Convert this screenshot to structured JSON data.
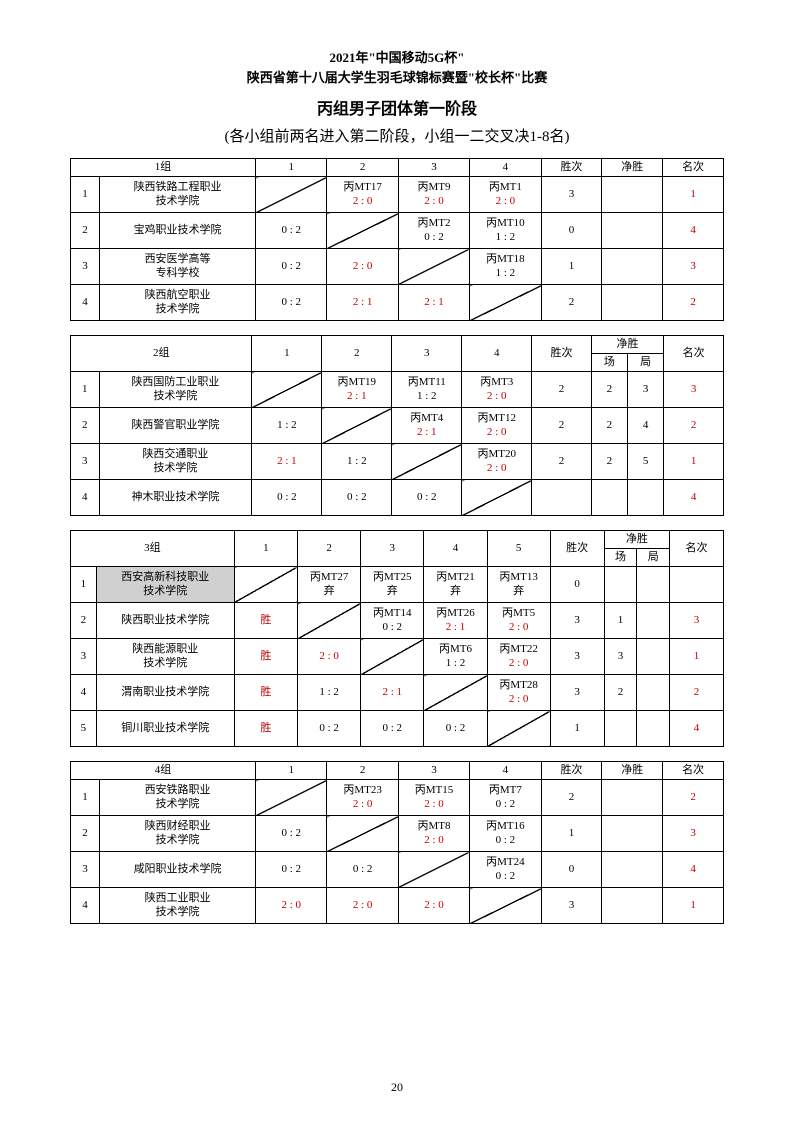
{
  "header": {
    "line1": "2021年\"中国移动5G杯\"",
    "line2": "陕西省第十八届大学生羽毛球锦标赛暨\"校长杯\"比赛"
  },
  "section_title": "丙组男子团体第一阶段",
  "subtitle": "(各小组前两名进入第二阶段，小组一二交叉决1-8名)",
  "labels": {
    "wins": "胜次",
    "net": "净胜",
    "rank": "名次",
    "chang": "场",
    "ju": "局"
  },
  "groups": [
    {
      "name": "1组",
      "match_cols": 4,
      "net_split": false,
      "teams": [
        {
          "name": "陕西铁路工程职业\n技术学院",
          "cells": [
            "DIAG",
            {
              "top": "丙MT17",
              "bot": "2 : 0",
              "bot_red": true
            },
            {
              "top": "丙MT9",
              "bot": "2 : 0",
              "bot_red": true
            },
            {
              "top": "丙MT1",
              "bot": "2 : 0",
              "bot_red": true
            }
          ],
          "wins": "3",
          "net": "",
          "rank": "1",
          "rank_red": true
        },
        {
          "name": "宝鸡职业技术学院",
          "cells": [
            {
              "bot": "0 : 2"
            },
            "DIAG",
            {
              "top": "丙MT2",
              "bot": "0 : 2"
            },
            {
              "top": "丙MT10",
              "bot": "1 : 2"
            }
          ],
          "wins": "0",
          "net": "",
          "rank": "4",
          "rank_red": true
        },
        {
          "name": "西安医学高等\n专科学校",
          "cells": [
            {
              "bot": "0 : 2"
            },
            {
              "bot": "2 : 0",
              "bot_red": true
            },
            "DIAG",
            {
              "top": "丙MT18",
              "bot": "1 : 2"
            }
          ],
          "wins": "1",
          "net": "",
          "rank": "3",
          "rank_red": true
        },
        {
          "name": "陕西航空职业\n技术学院",
          "cells": [
            {
              "bot": "0 : 2"
            },
            {
              "bot": "2 : 1",
              "bot_red": true
            },
            {
              "bot": "2 : 1",
              "bot_red": true
            },
            "DIAG"
          ],
          "wins": "2",
          "net": "",
          "rank": "2",
          "rank_red": true
        }
      ]
    },
    {
      "name": "2组",
      "match_cols": 4,
      "net_split": true,
      "teams": [
        {
          "name": "陕西国防工业职业\n技术学院",
          "cells": [
            "DIAG",
            {
              "top": "丙MT19",
              "bot": "2 : 1",
              "bot_red": true
            },
            {
              "top": "丙MT11",
              "bot": "1 : 2"
            },
            {
              "top": "丙MT3",
              "bot": "2 : 0",
              "bot_red": true
            }
          ],
          "wins": "2",
          "net_c": "2",
          "net_j": "3",
          "rank": "3",
          "rank_red": true
        },
        {
          "name": "陕西警官职业学院",
          "cells": [
            {
              "bot": "1 : 2"
            },
            "DIAG",
            {
              "top": "丙MT4",
              "bot": "2 : 1",
              "bot_red": true
            },
            {
              "top": "丙MT12",
              "bot": "2 : 0",
              "bot_red": true
            }
          ],
          "wins": "2",
          "net_c": "2",
          "net_j": "4",
          "rank": "2",
          "rank_red": true
        },
        {
          "name": "陕西交通职业\n技术学院",
          "cells": [
            {
              "bot": "2 : 1",
              "bot_red": true
            },
            {
              "bot": "1 : 2"
            },
            "DIAG",
            {
              "top": "丙MT20",
              "bot": "2 : 0",
              "bot_red": true
            }
          ],
          "wins": "2",
          "net_c": "2",
          "net_j": "5",
          "rank": "1",
          "rank_red": true
        },
        {
          "name": "神木职业技术学院",
          "cells": [
            {
              "bot": "0 : 2"
            },
            {
              "bot": "0 : 2"
            },
            {
              "bot": "0 : 2"
            },
            "DIAG"
          ],
          "wins": "",
          "net_c": "",
          "net_j": "",
          "rank": "4",
          "rank_red": true
        }
      ]
    },
    {
      "name": "3组",
      "match_cols": 5,
      "net_split": true,
      "teams": [
        {
          "name": "西安高新科技职业\n技术学院",
          "shade": true,
          "cells": [
            "DIAG",
            {
              "top": "丙MT27",
              "bot": "弃"
            },
            {
              "top": "丙MT25",
              "bot": "弃"
            },
            {
              "top": "丙MT21",
              "bot": "弃"
            },
            {
              "top": "丙MT13",
              "bot": "弃"
            }
          ],
          "wins": "0",
          "net_c": "",
          "net_j": "",
          "rank": ""
        },
        {
          "name": "陕西职业技术学院",
          "cells": [
            {
              "bot": "胜",
              "bot_red": true
            },
            "DIAG",
            {
              "top": "丙MT14",
              "bot": "0 : 2"
            },
            {
              "top": "丙MT26",
              "bot": "2 : 1",
              "bot_red": true
            },
            {
              "top": "丙MT5",
              "bot": "2 : 0",
              "bot_red": true
            }
          ],
          "wins": "3",
          "net_c": "1",
          "net_j": "",
          "rank": "3",
          "rank_red": true
        },
        {
          "name": "陕西能源职业\n技术学院",
          "cells": [
            {
              "bot": "胜",
              "bot_red": true
            },
            {
              "bot": "2 : 0",
              "bot_red": true
            },
            "DIAG",
            {
              "top": "丙MT6",
              "bot": "1 : 2"
            },
            {
              "top": "丙MT22",
              "bot": "2 : 0",
              "bot_red": true
            }
          ],
          "wins": "3",
          "net_c": "3",
          "net_j": "",
          "rank": "1",
          "rank_red": true
        },
        {
          "name": "渭南职业技术学院",
          "cells": [
            {
              "bot": "胜",
              "bot_red": true
            },
            {
              "bot": "1 : 2"
            },
            {
              "bot": "2 : 1",
              "bot_red": true
            },
            "DIAG",
            {
              "top": "丙MT28",
              "bot": "2 : 0",
              "bot_red": true
            }
          ],
          "wins": "3",
          "net_c": "2",
          "net_j": "",
          "rank": "2",
          "rank_red": true
        },
        {
          "name": "铜川职业技术学院",
          "cells": [
            {
              "bot": "胜",
              "bot_red": true
            },
            {
              "bot": "0 : 2"
            },
            {
              "bot": "0 : 2"
            },
            {
              "bot": "0 : 2"
            },
            "DIAG"
          ],
          "wins": "1",
          "net_c": "",
          "net_j": "",
          "rank": "4",
          "rank_red": true
        }
      ]
    },
    {
      "name": "4组",
      "match_cols": 4,
      "net_split": false,
      "teams": [
        {
          "name": "西安铁路职业\n技术学院",
          "cells": [
            "DIAG",
            {
              "top": "丙MT23",
              "bot": "2 : 0",
              "bot_red": true
            },
            {
              "top": "丙MT15",
              "bot": "2 : 0",
              "bot_red": true
            },
            {
              "top": "丙MT7",
              "bot": "0 : 2"
            }
          ],
          "wins": "2",
          "net": "",
          "rank": "2",
          "rank_red": true
        },
        {
          "name": "陕西财经职业\n技术学院",
          "cells": [
            {
              "bot": "0 : 2"
            },
            "DIAG",
            {
              "top": "丙MT8",
              "bot": "2 : 0",
              "bot_red": true
            },
            {
              "top": "丙MT16",
              "bot": "0 : 2"
            }
          ],
          "wins": "1",
          "net": "",
          "rank": "3",
          "rank_red": true
        },
        {
          "name": "咸阳职业技术学院",
          "cells": [
            {
              "bot": "0 : 2"
            },
            {
              "bot": "0 : 2"
            },
            "DIAG",
            {
              "top": "丙MT24",
              "bot": "0 : 2"
            }
          ],
          "wins": "0",
          "net": "",
          "rank": "4",
          "rank_red": true
        },
        {
          "name": "陕西工业职业\n技术学院",
          "cells": [
            {
              "bot": "2 : 0",
              "bot_red": true
            },
            {
              "bot": "2 : 0",
              "bot_red": true
            },
            {
              "bot": "2 : 0",
              "bot_red": true
            },
            "DIAG"
          ],
          "wins": "3",
          "net": "",
          "rank": "1",
          "rank_red": true
        }
      ]
    }
  ],
  "page_number": "20"
}
